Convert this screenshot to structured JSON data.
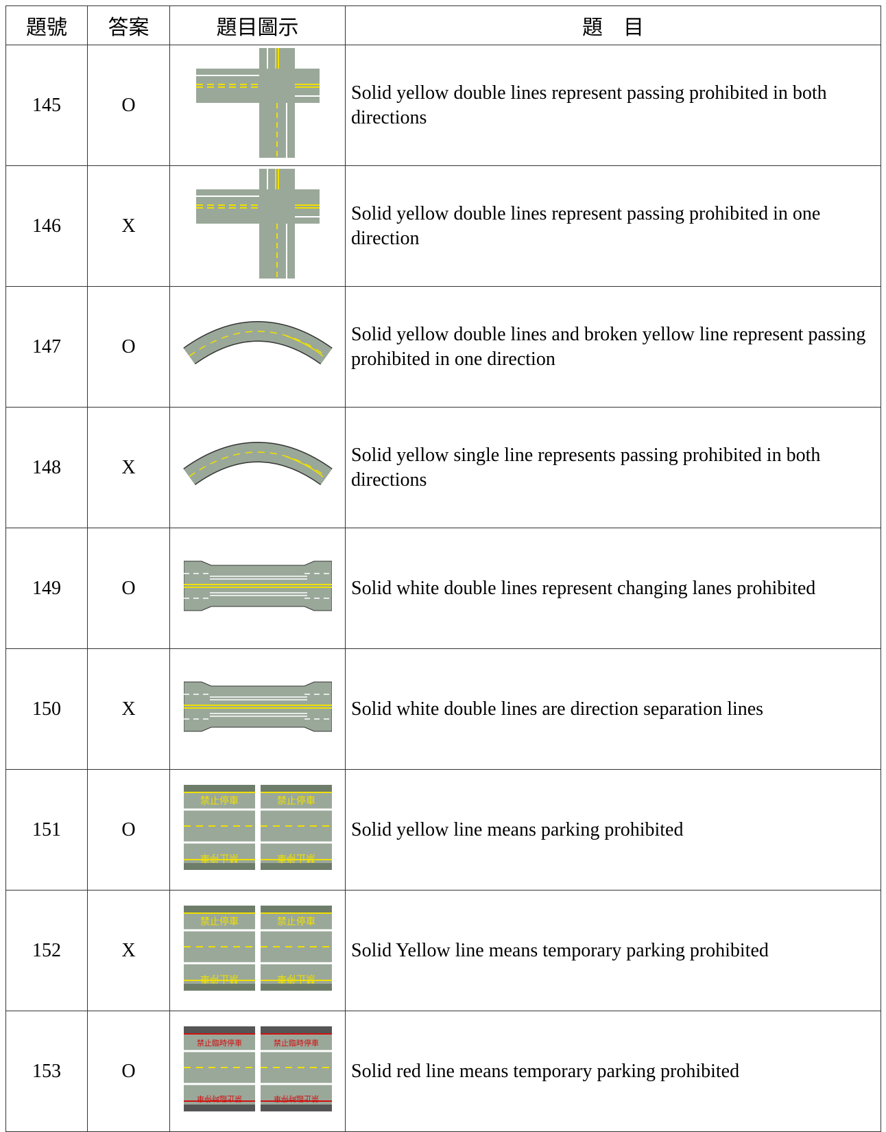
{
  "table": {
    "header": [
      "題號",
      "答案",
      "題目圖示",
      "題　目"
    ],
    "rows": [
      {
        "number": "145",
        "answer": "O",
        "question": "Solid yellow double lines represent passing prohibited in both directions"
      },
      {
        "number": "146",
        "answer": "X",
        "question": "Solid yellow double lines represent passing prohibited in one direction"
      },
      {
        "number": "147",
        "answer": "O",
        "question": "Solid yellow double lines and broken yellow line represent passing prohibited in one direction"
      },
      {
        "number": "148",
        "answer": "X",
        "question": "Solid yellow single line represents passing prohibited in both directions"
      },
      {
        "number": "149",
        "answer": "O",
        "question": "Solid white double lines represent changing lanes prohibited"
      },
      {
        "number": "150",
        "answer": "X",
        "question": "Solid white double lines are direction separation lines"
      },
      {
        "number": "151",
        "answer": "O",
        "question": "Solid yellow line means parking prohibited",
        "sign": "禁止停車"
      },
      {
        "number": "152",
        "answer": "X",
        "question": "Solid Yellow line means temporary parking prohibited",
        "sign": "禁止停車"
      },
      {
        "number": "153",
        "answer": "O",
        "question": "Solid red line means temporary parking prohibited",
        "sign": "禁止臨時停車"
      }
    ]
  }
}
